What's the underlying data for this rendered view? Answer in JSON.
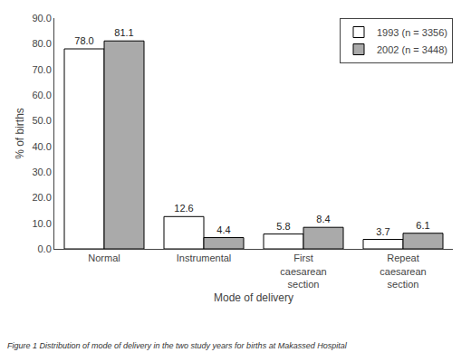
{
  "chart_data": {
    "type": "bar",
    "categories": [
      "Normal",
      "Instrumental",
      "First\ncaesarean\nsection",
      "Repeat\ncaesarean\nsection"
    ],
    "series": [
      {
        "name": "1993 (n = 3356)",
        "color": "#ffffff",
        "values": [
          78.0,
          12.6,
          5.8,
          3.7
        ],
        "value_labels": [
          "78.0",
          "12.6",
          "5.8",
          "3.7"
        ]
      },
      {
        "name": "2002 (n = 3448)",
        "color": "#aaaaaa",
        "values": [
          81.1,
          4.4,
          8.4,
          6.1
        ],
        "value_labels": [
          "81.1",
          "4.4",
          "8.4",
          "6.1"
        ]
      }
    ],
    "xlabel": "Mode of delivery",
    "ylabel": "% of births",
    "ylim": [
      0,
      90
    ],
    "yticks": [
      {
        "value": 0,
        "label": "0.0"
      },
      {
        "value": 10,
        "label": "10.0"
      },
      {
        "value": 20,
        "label": "20.0"
      },
      {
        "value": 30,
        "label": "30.0"
      },
      {
        "value": 40,
        "label": "40.0"
      },
      {
        "value": 50,
        "label": "50.0"
      },
      {
        "value": 60,
        "label": "60.0"
      },
      {
        "value": 70,
        "label": "70.0"
      },
      {
        "value": 80,
        "label": "80.0"
      },
      {
        "value": 90,
        "label": "90.0"
      }
    ],
    "caption": "Figure 1 Distribution of mode of delivery in the two study years for births at Makassed Hospital",
    "data_labels": true,
    "grid": false,
    "legend": "upper right"
  }
}
